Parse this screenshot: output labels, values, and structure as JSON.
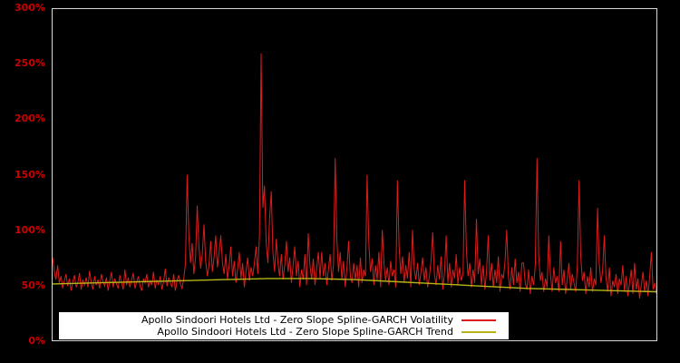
{
  "chart_data": {
    "type": "line",
    "title": "",
    "xlabel": "",
    "ylabel": "",
    "ylim": [
      0,
      300
    ],
    "grid": false,
    "legend_position": "bottom-center",
    "background_color": "#000000",
    "border_color": "#d8d8d8",
    "axis_label_color": "#cc0000",
    "ytick_values": [
      0,
      50,
      100,
      150,
      200,
      250,
      300
    ],
    "ytick_labels": [
      "0%",
      "50%",
      "100%",
      "150%",
      "200%",
      "250%",
      "300%"
    ],
    "series": [
      {
        "name": "Apollo Sindoori Hotels Ltd - Zero Slope Spline-GARCH Volatility",
        "color": "#dd1c1c",
        "values": [
          75,
          62,
          55,
          68,
          52,
          58,
          47,
          54,
          60,
          49,
          56,
          45,
          53,
          59,
          48,
          52,
          61,
          46,
          55,
          50,
          57,
          48,
          63,
          52,
          46,
          58,
          50,
          55,
          47,
          60,
          53,
          49,
          57,
          45,
          54,
          62,
          48,
          56,
          51,
          47,
          59,
          52,
          46,
          64,
          50,
          57,
          48,
          55,
          61,
          47,
          53,
          58,
          49,
          45,
          56,
          52,
          60,
          48,
          54,
          50,
          62,
          47,
          55,
          50,
          58,
          46,
          53,
          65,
          49,
          57,
          52,
          48,
          60,
          45,
          54,
          59,
          51,
          47,
          56,
          70,
          150,
          95,
          70,
          88,
          60,
          75,
          122,
          85,
          65,
          78,
          105,
          72,
          58,
          68,
          90,
          62,
          75,
          95,
          66,
          80,
          95,
          70,
          60,
          78,
          55,
          68,
          85,
          58,
          72,
          52,
          65,
          80,
          56,
          70,
          48,
          62,
          75,
          54,
          66,
          58,
          70,
          85,
          60,
          95,
          260,
          120,
          140,
          88,
          70,
          110,
          135,
          80,
          62,
          92,
          70,
          58,
          78,
          55,
          68,
          90,
          62,
          75,
          52,
          68,
          85,
          58,
          72,
          48,
          64,
          55,
          78,
          50,
          97,
          68,
          55,
          74,
          50,
          65,
          80,
          56,
          80,
          58,
          70,
          50,
          64,
          78,
          54,
          68,
          165,
          92,
          62,
          80,
          55,
          72,
          48,
          66,
          90,
          58,
          52,
          70,
          55,
          68,
          48,
          75,
          52,
          64,
          58,
          150,
          88,
          62,
          74,
          50,
          68,
          55,
          80,
          48,
          100,
          70,
          54,
          66,
          50,
          72,
          58,
          64,
          48,
          145,
          85,
          60,
          76,
          52,
          68,
          56,
          80,
          48,
          100,
          64,
          55,
          70,
          50,
          62,
          75,
          54,
          66,
          48,
          58,
          72,
          98,
          60,
          50,
          68,
          55,
          76,
          46,
          62,
          95,
          52,
          70,
          48,
          64,
          56,
          78,
          50,
          66,
          54,
          60,
          145,
          82,
          58,
          70,
          48,
          64,
          52,
          110,
          60,
          74,
          50,
          68,
          46,
          62,
          95,
          54,
          70,
          48,
          64,
          52,
          76,
          44,
          60,
          56,
          72,
          100,
          58,
          46,
          66,
          50,
          74,
          52,
          62,
          44,
          70,
          70,
          52,
          46,
          64,
          42,
          58,
          50,
          68,
          165,
          78,
          54,
          62,
          44,
          56,
          48,
          95,
          60,
          44,
          66,
          52,
          58,
          44,
          90,
          50,
          64,
          42,
          56,
          70,
          46,
          60,
          52,
          44,
          68,
          145,
          76,
          54,
          62,
          42,
          58,
          48,
          66,
          44,
          56,
          50,
          120,
          70,
          52,
          62,
          95,
          58,
          44,
          66,
          40,
          54,
          48,
          60,
          42,
          56,
          50,
          68,
          44,
          58,
          40,
          52,
          64,
          42,
          70,
          46,
          56,
          38,
          50,
          62,
          44,
          54,
          40,
          58,
          80,
          46,
          52,
          42
        ]
      },
      {
        "name": "Apollo Sindoori Hotels Ltd - Zero Slope Spline-GARCH Trend",
        "color": "#b5b517",
        "values": [
          51,
          52,
          53,
          54,
          55,
          56,
          56,
          55,
          53,
          51,
          49,
          47,
          46,
          45,
          44
        ]
      }
    ]
  }
}
